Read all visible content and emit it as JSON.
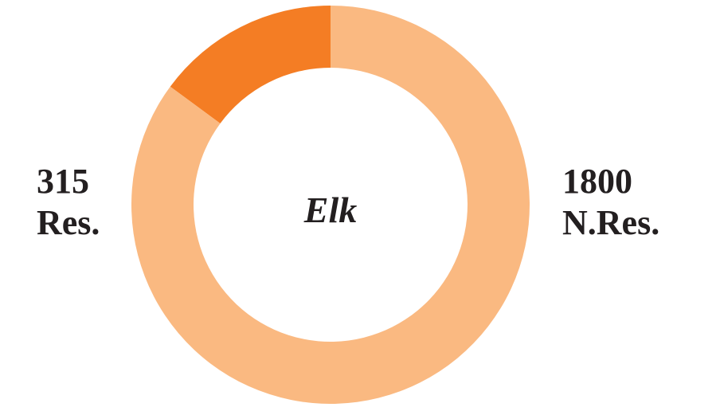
{
  "chart_data": {
    "type": "pie",
    "variant": "donut",
    "center_label": "Elk",
    "slices": [
      {
        "key": "res",
        "value": 315,
        "value_text": "315",
        "label": "Res.",
        "color": "#f47d24",
        "label_side": "left"
      },
      {
        "key": "nres",
        "value": 1800,
        "value_text": "1800",
        "label": "N.Res.",
        "color": "#fab981",
        "label_side": "right"
      }
    ],
    "start": "12 o'clock",
    "direction": "counterclockwise"
  }
}
